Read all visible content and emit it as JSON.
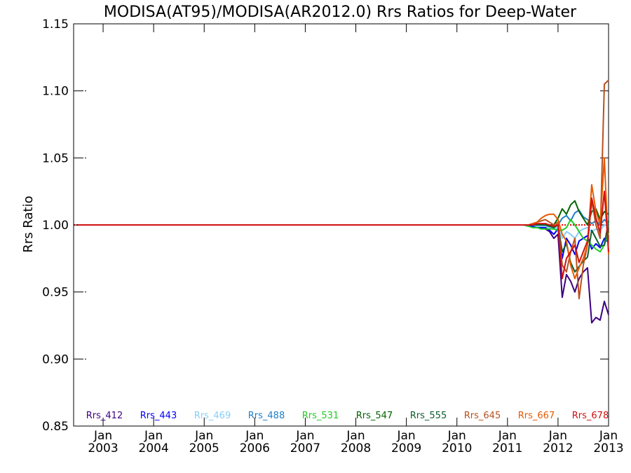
{
  "chart_data": {
    "type": "line",
    "title": "MODISA(AT95)/MODISA(AR2012.0)  Rrs Ratios for Deep-Water",
    "xlabel": "",
    "ylabel": "Rrs Ratio",
    "xlim": [
      "2002-06",
      "2013-01"
    ],
    "ylim": [
      0.85,
      1.15
    ],
    "yticks": [
      "0.85",
      "0.90",
      "0.95",
      "1.00",
      "1.05",
      "1.10",
      "1.15"
    ],
    "xticks": [
      {
        "month": "Jan",
        "year": "2003",
        "date": "2003-01"
      },
      {
        "month": "Jan",
        "year": "2004",
        "date": "2004-01"
      },
      {
        "month": "Jan",
        "year": "2005",
        "date": "2005-01"
      },
      {
        "month": "Jan",
        "year": "2006",
        "date": "2006-01"
      },
      {
        "month": "Jan",
        "year": "2007",
        "date": "2007-01"
      },
      {
        "month": "Jan",
        "year": "2008",
        "date": "2008-01"
      },
      {
        "month": "Jan",
        "year": "2009",
        "date": "2009-01"
      },
      {
        "month": "Jan",
        "year": "2010",
        "date": "2010-01"
      },
      {
        "month": "Jan",
        "year": "2011",
        "date": "2011-01"
      },
      {
        "month": "Jan",
        "year": "2012",
        "date": "2012-01"
      },
      {
        "month": "Jan",
        "year": "2013",
        "date": "2013-01"
      }
    ],
    "reference_line": {
      "y": 1.0,
      "color": "#ff0000",
      "style": "dotted"
    },
    "grid": false,
    "legend": "bottom",
    "x": [
      "2002-07",
      "2002-08",
      "2002-09",
      "2002-10",
      "2002-11",
      "2002-12",
      "2003-01",
      "2003-02",
      "2003-03",
      "2003-04",
      "2003-05",
      "2003-06",
      "2003-07",
      "2003-08",
      "2003-09",
      "2003-10",
      "2003-11",
      "2003-12",
      "2004-01",
      "2004-02",
      "2004-03",
      "2004-04",
      "2004-05",
      "2004-06",
      "2004-07",
      "2004-08",
      "2004-09",
      "2004-10",
      "2004-11",
      "2004-12",
      "2005-01",
      "2005-02",
      "2005-03",
      "2005-04",
      "2005-05",
      "2005-06",
      "2005-07",
      "2005-08",
      "2005-09",
      "2005-10",
      "2005-11",
      "2005-12",
      "2006-01",
      "2006-02",
      "2006-03",
      "2006-04",
      "2006-05",
      "2006-06",
      "2006-07",
      "2006-08",
      "2006-09",
      "2006-10",
      "2006-11",
      "2006-12",
      "2007-01",
      "2007-02",
      "2007-03",
      "2007-04",
      "2007-05",
      "2007-06",
      "2007-07",
      "2007-08",
      "2007-09",
      "2007-10",
      "2007-11",
      "2007-12",
      "2008-01",
      "2008-02",
      "2008-03",
      "2008-04",
      "2008-05",
      "2008-06",
      "2008-07",
      "2008-08",
      "2008-09",
      "2008-10",
      "2008-11",
      "2008-12",
      "2009-01",
      "2009-02",
      "2009-03",
      "2009-04",
      "2009-05",
      "2009-06",
      "2009-07",
      "2009-08",
      "2009-09",
      "2009-10",
      "2009-11",
      "2009-12",
      "2010-01",
      "2010-02",
      "2010-03",
      "2010-04",
      "2010-05",
      "2010-06",
      "2010-07",
      "2010-08",
      "2010-09",
      "2010-10",
      "2010-11",
      "2010-12",
      "2011-01",
      "2011-02",
      "2011-03",
      "2011-04",
      "2011-05",
      "2011-06",
      "2011-07",
      "2011-08",
      "2011-09",
      "2011-10",
      "2011-11",
      "2011-12",
      "2012-01",
      "2012-02",
      "2012-03",
      "2012-04",
      "2012-05",
      "2012-06",
      "2012-07",
      "2012-08",
      "2012-09",
      "2012-10",
      "2012-11",
      "2012-12",
      "2013-01"
    ],
    "series": [
      {
        "name": "Rrs_412",
        "color": "#3d0080",
        "tail": [
          1.0,
          1.0,
          0.999,
          0.999,
          0.998,
          0.998,
          0.997,
          0.995,
          0.99,
          0.993,
          0.946,
          0.963,
          0.958,
          0.95,
          0.96,
          0.965,
          0.968,
          0.927,
          0.931,
          0.929,
          0.943,
          0.933
        ]
      },
      {
        "name": "Rrs_443",
        "color": "#0000ff",
        "tail": [
          1.0,
          1.0,
          0.999,
          0.999,
          0.998,
          0.998,
          0.998,
          0.996,
          0.993,
          0.997,
          0.975,
          0.99,
          0.985,
          0.978,
          0.988,
          0.99,
          0.992,
          0.982,
          0.986,
          0.983,
          0.99,
          0.987
        ]
      },
      {
        "name": "Rrs_469",
        "color": "#87cefa",
        "tail": [
          1.0,
          1.0,
          1.0,
          1.0,
          0.999,
          0.999,
          0.999,
          0.998,
          0.997,
          0.998,
          0.99,
          0.995,
          0.993,
          0.99,
          0.995,
          0.997,
          0.998,
          0.995,
          0.997,
          0.996,
          1.0,
          0.999
        ]
      },
      {
        "name": "Rrs_488",
        "color": "#1e7fc8",
        "tail": [
          1.0,
          1.0,
          1.0,
          1.0,
          1.0,
          1.0,
          1.0,
          0.999,
          0.998,
          1.0,
          1.005,
          1.007,
          1.003,
          1.009,
          1.011,
          1.006,
          1.004,
          1.001,
          1.003,
          1.0,
          1.004,
          1.001
        ]
      },
      {
        "name": "Rrs_531",
        "color": "#22cc22",
        "tail": [
          1.0,
          1.0,
          0.999,
          0.998,
          0.998,
          0.997,
          0.997,
          0.997,
          0.997,
          0.996,
          0.996,
          0.998,
          1.004,
          1.0,
          0.995,
          0.99,
          0.988,
          0.985,
          0.982,
          0.98,
          0.985,
          0.994
        ]
      },
      {
        "name": "Rrs_547",
        "color": "#006400",
        "tail": [
          1.0,
          1.0,
          1.0,
          1.0,
          1.0,
          1.0,
          1.0,
          1.0,
          1.0,
          1.005,
          1.012,
          1.008,
          1.015,
          1.018,
          1.01,
          1.005,
          1.0,
          1.01,
          1.012,
          1.004,
          1.01,
          1.008
        ]
      },
      {
        "name": "Rrs_555",
        "color": "#0d5e2d",
        "tail": [
          1.0,
          1.0,
          1.0,
          1.0,
          1.0,
          1.0,
          1.0,
          0.999,
          0.998,
          1.0,
          0.98,
          0.986,
          0.972,
          0.965,
          0.969,
          0.973,
          0.976,
          0.996,
          0.99,
          0.984,
          0.985,
          1.003
        ]
      },
      {
        "name": "Rrs_645",
        "color": "#b8501e",
        "tail": [
          1.0,
          1.0,
          1.0,
          1.001,
          1.002,
          1.003,
          1.004,
          1.002,
          1.0,
          1.002,
          0.97,
          0.965,
          0.98,
          0.99,
          0.945,
          0.97,
          0.985,
          1.018,
          1.0,
          0.99,
          1.105,
          1.108
        ]
      },
      {
        "name": "Rrs_667",
        "color": "#e65a00",
        "tail": [
          1.0,
          1.0,
          1.0,
          1.001,
          1.002,
          1.005,
          1.007,
          1.008,
          1.008,
          1.004,
          0.993,
          0.988,
          0.97,
          0.96,
          0.968,
          0.975,
          0.985,
          1.03,
          1.01,
          1.0,
          1.05,
          0.978
        ]
      },
      {
        "name": "Rrs_678",
        "color": "#d01010",
        "tail": [
          1.0,
          1.0,
          1.0,
          1.0,
          1.001,
          1.001,
          1.001,
          1.0,
          0.999,
          1.0,
          0.96,
          0.975,
          0.98,
          0.985,
          0.972,
          0.98,
          0.988,
          1.02,
          1.005,
          0.994,
          1.025,
          0.98
        ]
      }
    ]
  }
}
